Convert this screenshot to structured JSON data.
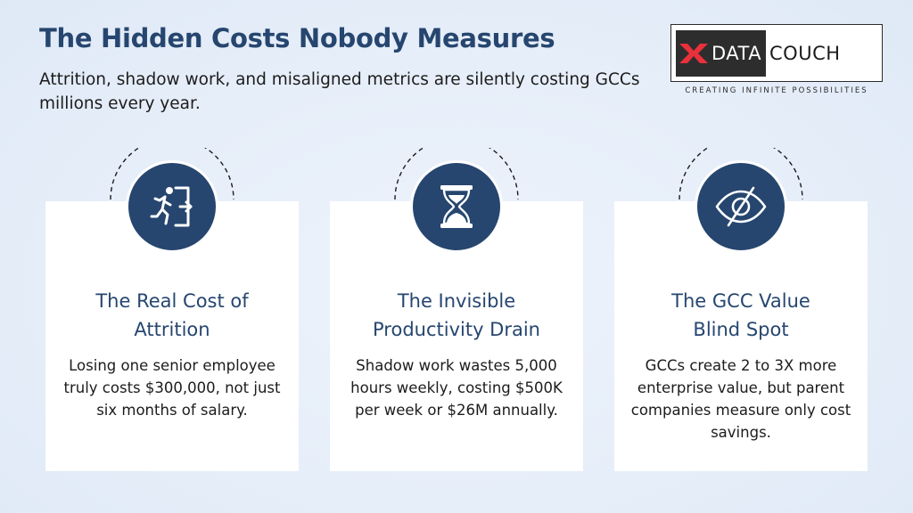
{
  "header": {
    "title": "The Hidden Costs Nobody Measures",
    "subtitle": "Attrition, shadow work, and misaligned metrics are silently costing GCCs millions every year."
  },
  "logo": {
    "part1": "DATA",
    "part2": "COUCH",
    "tagline": "CREATING INFINITE POSSIBILITIES",
    "colors": {
      "mark": "#e8313a",
      "dark": "#2d2d2d"
    }
  },
  "cards": [
    {
      "icon": "exit-running-icon",
      "title_line1": "The Real Cost of",
      "title_line2": "Attrition",
      "text": "Losing one senior employee truly costs $300,000, not just six months of salary."
    },
    {
      "icon": "hourglass-icon",
      "title_line1": "The Invisible",
      "title_line2": "Productivity Drain",
      "text": "Shadow work wastes 5,000 hours weekly, costing $500K per week or $26M annually."
    },
    {
      "icon": "eye-slash-icon",
      "title_line1": "The GCC Value",
      "title_line2": "Blind Spot",
      "text": "GCCs create 2 to 3X more enterprise value, but parent companies measure only cost savings."
    }
  ],
  "colors": {
    "accent": "#26466f",
    "background": "#e8eff9",
    "card": "#ffffff"
  }
}
